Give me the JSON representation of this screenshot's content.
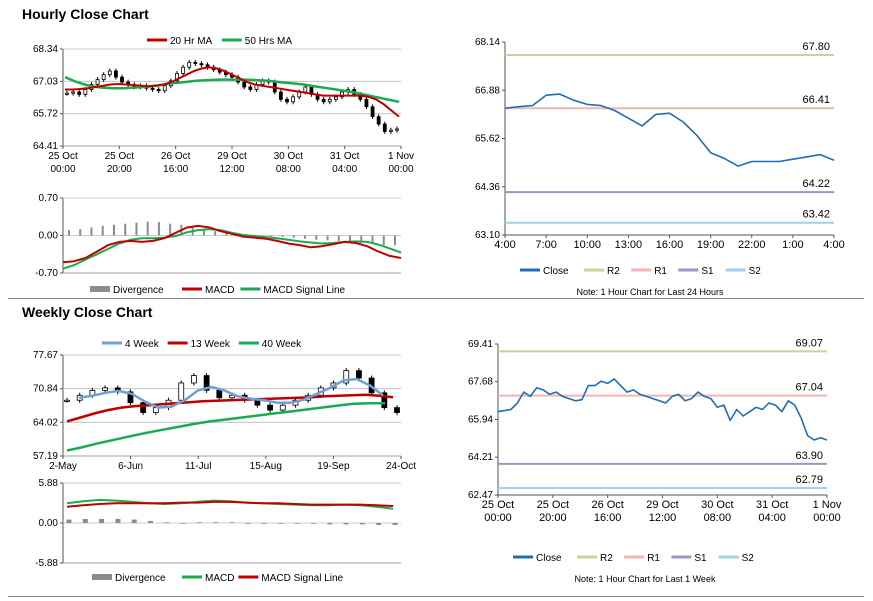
{
  "sections": {
    "hourly_title": "Hourly Close Chart",
    "weekly_title": "Weekly Close Chart"
  },
  "colors": {
    "ma20": "#c00000",
    "ma50": "#1aab50",
    "close": "#1f6eb5",
    "r2": "#c3d69b",
    "r1": "#f2b4b4",
    "s1": "#a493c2",
    "s2": "#9fd3e6",
    "divergence": "#8c8c8c",
    "candle": "#000000",
    "ma4": "#6f9fd8"
  },
  "chart_data": [
    {
      "id": "hourly-price",
      "type": "candlestick",
      "ylim": [
        64.41,
        68.34
      ],
      "yticks": [
        "68.34",
        "67.03",
        "65.72",
        "64.41"
      ],
      "xticks": [
        "25 Oct\n00:00",
        "25 Oct\n20:00",
        "26 Oct\n16:00",
        "29 Oct\n12:00",
        "30 Oct\n08:00",
        "31 Oct\n04:00",
        "1 Nov\n00:00"
      ],
      "legend": [
        "20 Hr MA",
        "50 Hrs MA"
      ],
      "close": [
        66.55,
        66.6,
        66.5,
        66.7,
        66.9,
        67.1,
        67.3,
        67.45,
        67.2,
        67.0,
        66.9,
        66.8,
        66.85,
        66.75,
        66.7,
        66.65,
        66.85,
        67.05,
        67.35,
        67.6,
        67.8,
        67.75,
        67.7,
        67.6,
        67.5,
        67.4,
        67.3,
        67.2,
        67.0,
        66.8,
        66.7,
        66.9,
        67.05,
        67.0,
        66.6,
        66.3,
        66.2,
        66.4,
        66.6,
        66.8,
        66.5,
        66.3,
        66.2,
        66.3,
        66.4,
        66.6,
        66.7,
        66.5,
        66.3,
        66.0,
        65.6,
        65.3,
        65.0,
        65.05,
        65.1
      ],
      "ma20": [
        66.7,
        66.7,
        66.72,
        66.75,
        66.8,
        66.85,
        66.9,
        66.92,
        66.9,
        66.88,
        66.85,
        66.83,
        66.85,
        66.9,
        67.0,
        67.15,
        67.3,
        67.45,
        67.55,
        67.6,
        67.55,
        67.45,
        67.3,
        67.15,
        67.0,
        66.9,
        66.85,
        66.8,
        66.75,
        66.7,
        66.65,
        66.6,
        66.55,
        66.5,
        66.45,
        66.45,
        66.45,
        66.45,
        66.45,
        66.45,
        66.4,
        66.3,
        66.1,
        65.85,
        65.6
      ],
      "ma50": [
        67.2,
        67.0,
        66.85,
        66.78,
        66.75,
        66.75,
        66.78,
        66.82,
        66.88,
        66.95,
        67.0,
        67.05,
        67.08,
        67.1,
        67.1,
        67.1,
        67.08,
        67.05,
        67.0,
        66.95,
        66.9,
        66.82,
        66.75,
        66.68,
        66.6,
        66.5,
        66.4,
        66.3,
        66.2
      ]
    },
    {
      "id": "hourly-macd",
      "type": "macd",
      "ylim": [
        -0.7,
        0.7
      ],
      "yticks": [
        "0.70",
        "0.00",
        "-0.70"
      ],
      "legend": [
        "Divergence",
        "MACD",
        "MACD Signal Line"
      ],
      "macd": [
        -0.5,
        -0.48,
        -0.42,
        -0.3,
        -0.18,
        -0.12,
        -0.1,
        -0.12,
        -0.1,
        -0.05,
        0.05,
        0.15,
        0.18,
        0.15,
        0.08,
        0.03,
        -0.02,
        -0.04,
        -0.06,
        -0.1,
        -0.15,
        -0.18,
        -0.22,
        -0.2,
        -0.16,
        -0.12,
        -0.14,
        -0.2,
        -0.3,
        -0.38,
        -0.42
      ],
      "signal": [
        -0.62,
        -0.55,
        -0.45,
        -0.35,
        -0.25,
        -0.15,
        -0.08,
        -0.05,
        -0.05,
        -0.04,
        -0.01,
        0.06,
        0.1,
        0.12,
        0.1,
        0.05,
        0.01,
        -0.01,
        -0.03,
        -0.05,
        -0.08,
        -0.11,
        -0.13,
        -0.15,
        -0.14,
        -0.12,
        -0.11,
        -0.12,
        -0.17,
        -0.24,
        -0.32
      ],
      "divergence": [
        0.1,
        0.12,
        0.15,
        0.18,
        0.2,
        0.22,
        0.24,
        0.26,
        0.25,
        0.22,
        0.2,
        0.16,
        0.12,
        0.08,
        0.05,
        0.03,
        0.01,
        -0.01,
        -0.02,
        -0.03,
        -0.04,
        -0.06,
        -0.08,
        -0.09,
        -0.1,
        -0.12,
        -0.14,
        -0.16,
        -0.18,
        -0.18
      ]
    },
    {
      "id": "hourly-24h",
      "type": "line",
      "ylim": [
        63.1,
        68.14
      ],
      "yticks": [
        "68.14",
        "66.88",
        "65.62",
        "64.36",
        "63.10"
      ],
      "xticks": [
        "4:00",
        "7:00",
        "10:00",
        "13:00",
        "16:00",
        "19:00",
        "22:00",
        "1:00",
        "4:00"
      ],
      "x": [
        4,
        5,
        6,
        7,
        8,
        9,
        10,
        11,
        12,
        13,
        14,
        15,
        16,
        17,
        18,
        19,
        20,
        21,
        22,
        23,
        24,
        25,
        26,
        27,
        28
      ],
      "close": [
        66.41,
        66.45,
        66.48,
        66.75,
        66.78,
        66.62,
        66.51,
        66.48,
        66.35,
        66.15,
        65.95,
        66.25,
        66.28,
        66.05,
        65.7,
        65.25,
        65.1,
        64.9,
        65.02,
        65.02,
        65.02,
        65.08,
        65.14,
        65.2,
        65.05
      ],
      "levels": [
        {
          "name": "R2",
          "value": 67.8,
          "label": "67.80"
        },
        {
          "name": "R1",
          "value": 66.41,
          "label": "66.41"
        },
        {
          "name": "S1",
          "value": 64.22,
          "label": "64.22"
        },
        {
          "name": "S2",
          "value": 63.42,
          "label": "63.42"
        }
      ],
      "legend": [
        "Close",
        "R2",
        "R1",
        "S1",
        "S2"
      ],
      "note": "Note: 1 Hour Chart for Last 24 Hours"
    },
    {
      "id": "weekly-price",
      "type": "candlestick",
      "ylim": [
        57.19,
        77.67
      ],
      "yticks": [
        "77.67",
        "70.84",
        "64.02",
        "57.19"
      ],
      "xticks": [
        "2-May",
        "6-Jun",
        "11-Jul",
        "15-Aug",
        "19-Sep",
        "24-Oct"
      ],
      "legend": [
        "4 Week",
        "13 Week",
        "40 Week"
      ],
      "close": [
        68.5,
        69.5,
        70.5,
        71.0,
        70.2,
        68.0,
        66.0,
        67.0,
        68.5,
        72.0,
        73.5,
        70.5,
        69.0,
        69.5,
        68.5,
        67.5,
        66.5,
        67.5,
        68.5,
        69.5,
        71.0,
        72.0,
        74.5,
        73.0,
        70.0,
        67.0,
        66.0
      ],
      "ma4": [
        69.0,
        69.4,
        70.0,
        70.4,
        69.8,
        68.2,
        67.0,
        67.2,
        68.5,
        70.5,
        71.2,
        70.5,
        69.3,
        68.8,
        68.5,
        68.0,
        68.0,
        68.6,
        69.8,
        71.0,
        72.5,
        72.8,
        71.5,
        69.5
      ],
      "ma13": [
        64.2,
        65.0,
        65.8,
        66.5,
        67.0,
        67.3,
        67.5,
        67.7,
        67.9,
        68.1,
        68.3,
        68.4,
        68.5,
        68.6,
        68.7,
        68.8,
        68.9,
        69.0,
        69.1,
        69.3,
        69.4,
        69.5,
        69.6,
        69.4,
        69.1
      ],
      "ma40": [
        58.3,
        59.0,
        59.8,
        60.5,
        61.2,
        61.9,
        62.5,
        63.1,
        63.7,
        64.2,
        64.6,
        65.0,
        65.4,
        65.8,
        66.2,
        66.6,
        67.0,
        67.4,
        67.8,
        67.9,
        67.9
      ]
    },
    {
      "id": "weekly-macd",
      "type": "macd",
      "ylim": [
        -5.88,
        5.88
      ],
      "yticks": [
        "5.88",
        "0.00",
        "-5.88"
      ],
      "legend": [
        "Divergence",
        "MACD",
        "MACD Signal Line"
      ],
      "macd": [
        2.9,
        3.2,
        3.4,
        3.3,
        3.1,
        2.9,
        2.8,
        2.9,
        3.1,
        3.3,
        3.2,
        3.0,
        2.9,
        2.8,
        2.7,
        2.6,
        2.6,
        2.7,
        2.6,
        2.4,
        2.1
      ],
      "signal": [
        2.4,
        2.6,
        2.8,
        2.9,
        2.9,
        2.9,
        2.9,
        3.0,
        3.0,
        3.1,
        3.1,
        3.0,
        2.9,
        2.9,
        2.8,
        2.7,
        2.7,
        2.7,
        2.7,
        2.6,
        2.5
      ],
      "divergence": [
        0.5,
        0.6,
        0.6,
        0.6,
        0.5,
        0.3,
        0.1,
        0.0,
        0.1,
        0.1,
        0.1,
        0.0,
        0.0,
        -0.1,
        -0.1,
        -0.1,
        -0.2,
        -0.2,
        -0.2,
        -0.3,
        -0.3
      ]
    },
    {
      "id": "weekly-1w",
      "type": "line",
      "ylim": [
        62.47,
        69.41
      ],
      "yticks": [
        "69.41",
        "67.68",
        "65.94",
        "64.21",
        "62.47"
      ],
      "xticks": [
        "25 Oct\n00:00",
        "25 Oct\n20:00",
        "26 Oct\n16:00",
        "29 Oct\n12:00",
        "30 Oct\n08:00",
        "31 Oct\n04:00",
        "1 Nov\n00:00"
      ],
      "close": [
        66.3,
        66.35,
        66.4,
        66.7,
        67.2,
        67.0,
        67.4,
        67.3,
        67.1,
        67.2,
        67.0,
        66.9,
        66.8,
        66.85,
        67.5,
        67.5,
        67.7,
        67.6,
        67.8,
        67.5,
        67.2,
        67.3,
        67.1,
        67.0,
        66.9,
        66.8,
        66.7,
        67.0,
        67.1,
        66.8,
        66.9,
        67.2,
        67.0,
        66.9,
        66.5,
        66.6,
        65.9,
        66.4,
        66.1,
        66.3,
        66.5,
        66.4,
        66.7,
        66.6,
        66.3,
        66.8,
        66.6,
        66.0,
        65.2,
        65.0,
        65.1,
        65.0
      ],
      "levels": [
        {
          "name": "R2",
          "value": 69.07,
          "label": "69.07"
        },
        {
          "name": "R1",
          "value": 67.04,
          "label": "67.04"
        },
        {
          "name": "S1",
          "value": 63.9,
          "label": "63.90"
        },
        {
          "name": "S2",
          "value": 62.79,
          "label": "62.79"
        }
      ],
      "legend": [
        "Close",
        "R2",
        "R1",
        "S1",
        "S2"
      ],
      "note": "Note: 1 Hour Chart for Last 1 Week"
    }
  ]
}
